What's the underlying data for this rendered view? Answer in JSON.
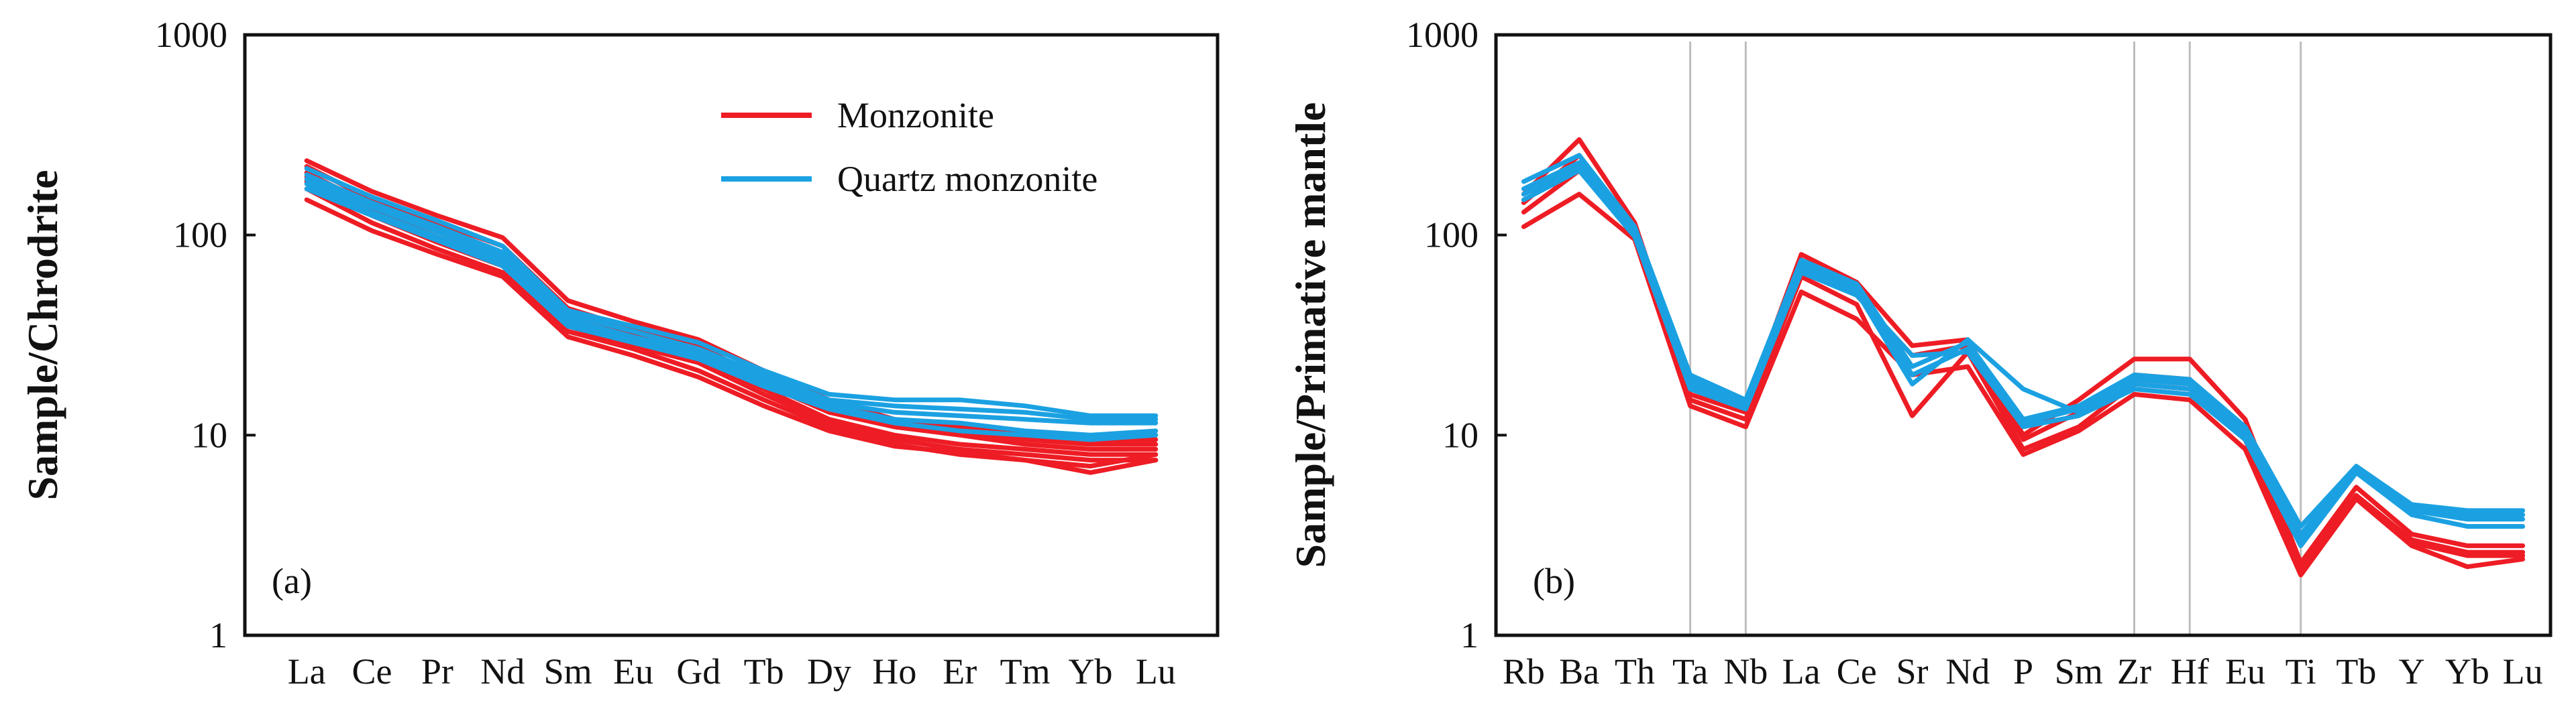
{
  "chart_data": [
    {
      "type": "line",
      "panel_label": "(a)",
      "ylabel": "Sample/Chrodrite",
      "xlabel": "",
      "y_scale": "log",
      "ylim": [
        1,
        1000
      ],
      "yticks": [
        {
          "value": 1,
          "label": "1"
        },
        {
          "value": 10,
          "label": "10"
        },
        {
          "value": 100,
          "label": "100"
        },
        {
          "value": 1000,
          "label": "1000"
        }
      ],
      "categories": [
        "La",
        "Ce",
        "Pr",
        "Nd",
        "Sm",
        "Eu",
        "Gd",
        "Tb",
        "Dy",
        "Ho",
        "Er",
        "Tm",
        "Yb",
        "Lu"
      ],
      "legend": {
        "placement": "top-right",
        "entries": [
          {
            "label": "Monzonite",
            "color": "#ee1c24"
          },
          {
            "label": "Quartz monzonite",
            "color": "#1ba1e2"
          }
        ]
      },
      "series": [
        {
          "group": "Monzonite",
          "color": "#ee1c24",
          "values": [
            235,
            165,
            125,
            97,
            47,
            37,
            30,
            21,
            15,
            12,
            11,
            10,
            9.5,
            9.5
          ]
        },
        {
          "group": "Monzonite",
          "color": "#ee1c24",
          "values": [
            220,
            150,
            115,
            88,
            43,
            34,
            28,
            19,
            13.5,
            11.5,
            10.5,
            9.5,
            9,
            9
          ]
        },
        {
          "group": "Monzonite",
          "color": "#ee1c24",
          "values": [
            205,
            140,
            105,
            80,
            40,
            32,
            26,
            18,
            13,
            11,
            10,
            9,
            8.5,
            8.5
          ]
        },
        {
          "group": "Monzonite",
          "color": "#ee1c24",
          "values": [
            195,
            132,
            98,
            75,
            37,
            30,
            24,
            17,
            12,
            10,
            9,
            8.5,
            8,
            8
          ]
        },
        {
          "group": "Monzonite",
          "color": "#ee1c24",
          "values": [
            185,
            125,
            92,
            70,
            35,
            28,
            23,
            16,
            11.5,
            9.5,
            8.5,
            8,
            7.5,
            7.5
          ]
        },
        {
          "group": "Monzonite",
          "color": "#ee1c24",
          "values": [
            170,
            115,
            85,
            65,
            33,
            27,
            21,
            15,
            11,
            9,
            8,
            7.5,
            6.5,
            7.5
          ]
        },
        {
          "group": "Monzonite",
          "color": "#ee1c24",
          "values": [
            150,
            105,
            80,
            62,
            31,
            25,
            19.5,
            14,
            10.5,
            8.8,
            8.2,
            7.5,
            7,
            8
          ]
        },
        {
          "group": "Quartz monzonite",
          "color": "#1ba1e2",
          "values": [
            215,
            155,
            118,
            88,
            42,
            35,
            29,
            21,
            16,
            15,
            15,
            14,
            12.5,
            12.5
          ]
        },
        {
          "group": "Quartz monzonite",
          "color": "#1ba1e2",
          "values": [
            200,
            145,
            110,
            82,
            40,
            33,
            27,
            20,
            15,
            14,
            13.5,
            13,
            12,
            12
          ]
        },
        {
          "group": "Quartz monzonite",
          "color": "#1ba1e2",
          "values": [
            190,
            138,
            104,
            78,
            38,
            31,
            26,
            19,
            14.5,
            13,
            12.5,
            12,
            11.5,
            11.5
          ]
        },
        {
          "group": "Quartz monzonite",
          "color": "#1ba1e2",
          "values": [
            180,
            130,
            98,
            74,
            36,
            30,
            25,
            18,
            14,
            12,
            11.5,
            10.5,
            10,
            10.5
          ]
        },
        {
          "group": "Quartz monzonite",
          "color": "#1ba1e2",
          "values": [
            170,
            125,
            94,
            70,
            35,
            29,
            24,
            17.5,
            13.5,
            11.5,
            10.5,
            10,
            9.5,
            10
          ]
        }
      ]
    },
    {
      "type": "line",
      "panel_label": "(b)",
      "ylabel": "Sample/Primative mantle",
      "xlabel": "",
      "y_scale": "log",
      "ylim": [
        1,
        1000
      ],
      "yticks": [
        {
          "value": 1,
          "label": "1"
        },
        {
          "value": 10,
          "label": "10"
        },
        {
          "value": 100,
          "label": "100"
        },
        {
          "value": 1000,
          "label": "1000"
        }
      ],
      "categories": [
        "Rb",
        "Ba",
        "Th",
        "Ta",
        "Nb",
        "La",
        "Ce",
        "Sr",
        "Nd",
        "P",
        "Sm",
        "Zr",
        "Hf",
        "Eu",
        "Ti",
        "Tb",
        "Y",
        "Yb",
        "Lu"
      ],
      "reference_lines": [
        "Ta",
        "Nb",
        "Zr",
        "Hf",
        "Ti"
      ],
      "series": [
        {
          "group": "Monzonite",
          "color": "#ee1c24",
          "values": [
            160,
            300,
            115,
            17,
            14,
            80,
            58,
            28,
            30,
            10,
            15,
            24,
            24,
            12,
            2.3,
            5.5,
            3.2,
            2.8,
            2.8
          ]
        },
        {
          "group": "Monzonite",
          "color": "#ee1c24",
          "values": [
            145,
            250,
            105,
            16,
            13,
            70,
            50,
            25,
            28,
            9.5,
            13,
            20,
            19,
            10.5,
            2.2,
            5,
            3,
            2.6,
            2.6
          ]
        },
        {
          "group": "Monzonite",
          "color": "#ee1c24",
          "values": [
            130,
            210,
            100,
            15,
            12,
            62,
            45,
            12.5,
            26,
            8.5,
            11,
            18,
            17,
            9.5,
            2.1,
            5,
            2.9,
            2.5,
            2.5
          ]
        },
        {
          "group": "Monzonite",
          "color": "#ee1c24",
          "values": [
            110,
            160,
            95,
            14,
            11,
            52,
            38,
            20,
            22,
            8,
            10.5,
            16,
            15,
            8.5,
            2,
            4.8,
            2.8,
            2.2,
            2.4
          ]
        },
        {
          "group": "Quartz monzonite",
          "color": "#1ba1e2",
          "values": [
            185,
            250,
            110,
            20,
            15,
            75,
            57,
            22,
            29,
            12,
            14,
            20,
            19,
            11,
            3.5,
            7,
            4.5,
            4.2,
            4.2
          ]
        },
        {
          "group": "Quartz monzonite",
          "color": "#1ba1e2",
          "values": [
            170,
            230,
            105,
            19,
            14.5,
            72,
            54,
            20,
            27,
            11.5,
            13.5,
            19,
            18,
            10.5,
            3.2,
            6.8,
            4.3,
            4,
            4
          ]
        },
        {
          "group": "Quartz monzonite",
          "color": "#1ba1e2",
          "values": [
            160,
            220,
            100,
            18,
            14,
            68,
            52,
            18,
            30,
            17,
            13,
            18,
            17,
            10,
            3,
            6.5,
            4.2,
            3.8,
            3.8
          ]
        },
        {
          "group": "Quartz monzonite",
          "color": "#1ba1e2",
          "values": [
            150,
            210,
            98,
            17,
            13.5,
            65,
            50,
            25,
            26,
            11,
            12.5,
            17,
            16,
            9.5,
            2.8,
            6.5,
            4,
            3.5,
            3.5
          ]
        }
      ]
    }
  ]
}
